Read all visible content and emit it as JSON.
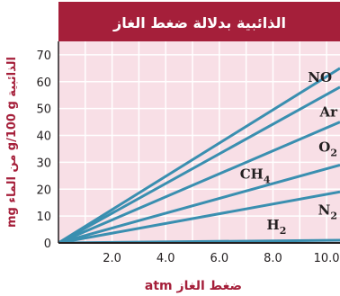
{
  "chart_data": {
    "type": "line",
    "title": "الذائبية بدلالة ضغط الغاز",
    "xlabel": "ضغط الغاز atm",
    "ylabel": "الذائبية g/100 g من الماء mg",
    "xlim": [
      0,
      10.5
    ],
    "ylim": [
      0,
      75
    ],
    "x_ticks": [
      "2.0",
      "4.0",
      "6.0",
      "8.0",
      "10.0"
    ],
    "y_ticks": [
      "0",
      "10",
      "20",
      "30",
      "40",
      "50",
      "60",
      "70"
    ],
    "grid": true,
    "series": [
      {
        "name": "NO",
        "x": [
          0,
          10.5
        ],
        "y": [
          0,
          65
        ]
      },
      {
        "name": "Ar",
        "x": [
          0,
          10.5
        ],
        "y": [
          0,
          58
        ]
      },
      {
        "name": "O2",
        "x": [
          0,
          10.5
        ],
        "y": [
          0,
          45
        ]
      },
      {
        "name": "CH4",
        "x": [
          0,
          10.5
        ],
        "y": [
          0,
          29
        ]
      },
      {
        "name": "N2",
        "x": [
          0,
          10.5
        ],
        "y": [
          0,
          19
        ]
      },
      {
        "name": "H2",
        "x": [
          0,
          10.5
        ],
        "y": [
          0,
          1
        ]
      }
    ],
    "colors": {
      "title_bg": "#a51f3a",
      "title_text": "#ffffff",
      "plot_bg": "#f8dfe6",
      "grid": "#ffffff",
      "line": "#3a8fb0",
      "axis_text": "#231f20",
      "axis_label": "#a51f3a"
    }
  }
}
